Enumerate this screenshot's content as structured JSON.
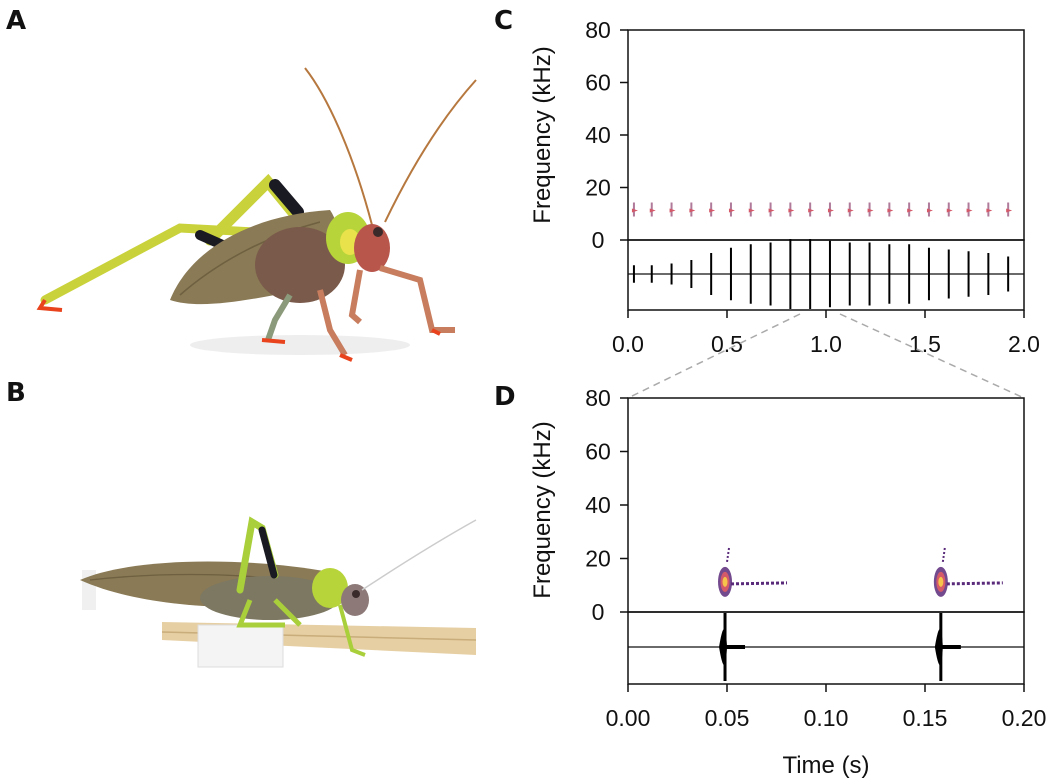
{
  "panels": {
    "a": "A",
    "b": "B",
    "c": "C",
    "d": "D"
  },
  "chart_data": [
    {
      "type": "spectrogram",
      "panel": "C",
      "ylabel": "Frequency (kHz)",
      "yticks": [
        "80",
        "60",
        "40",
        "20",
        "0"
      ],
      "xticks": [
        "0.0",
        "0.5",
        "1.0",
        "1.5",
        "2.0"
      ],
      "ylim": [
        0,
        80
      ],
      "xlim": [
        0.0,
        2.0
      ],
      "pulse_times": [
        0.03,
        0.12,
        0.22,
        0.32,
        0.42,
        0.52,
        0.62,
        0.72,
        0.82,
        0.92,
        1.02,
        1.12,
        1.22,
        1.32,
        1.42,
        1.52,
        1.62,
        1.72,
        1.82,
        1.92
      ],
      "pulse_amplitudes": [
        0.25,
        0.25,
        0.3,
        0.4,
        0.6,
        0.75,
        0.85,
        0.9,
        1.0,
        1.0,
        0.95,
        0.9,
        0.9,
        0.85,
        0.85,
        0.75,
        0.7,
        0.65,
        0.6,
        0.5
      ],
      "carrier_khz": 12
    },
    {
      "type": "spectrogram",
      "panel": "D",
      "ylabel": "Frequency (kHz)",
      "xlabel": "Time (s)",
      "yticks": [
        "80",
        "60",
        "40",
        "20",
        "0"
      ],
      "xticks": [
        "0.00",
        "0.05",
        "0.10",
        "0.15",
        "0.20"
      ],
      "ylim": [
        0,
        80
      ],
      "xlim": [
        0.0,
        0.2
      ],
      "pulse_times": [
        0.049,
        0.158
      ],
      "carrier_khz": 12,
      "zoom_window": [
        0.85,
        1.05
      ]
    }
  ],
  "colors": {
    "axis": "#111111",
    "zoom_line": "#aaaaaa",
    "spec_hot": "#f6c44a",
    "spec_mid": "#d45a6a",
    "spec_cool": "#5a2a7a",
    "grass_green": "#a9cf3a",
    "wing_brown": "#8a7a55",
    "body_red": "#b8564c",
    "foot_orange": "#e8431c",
    "leg_black": "#1a1a22"
  }
}
